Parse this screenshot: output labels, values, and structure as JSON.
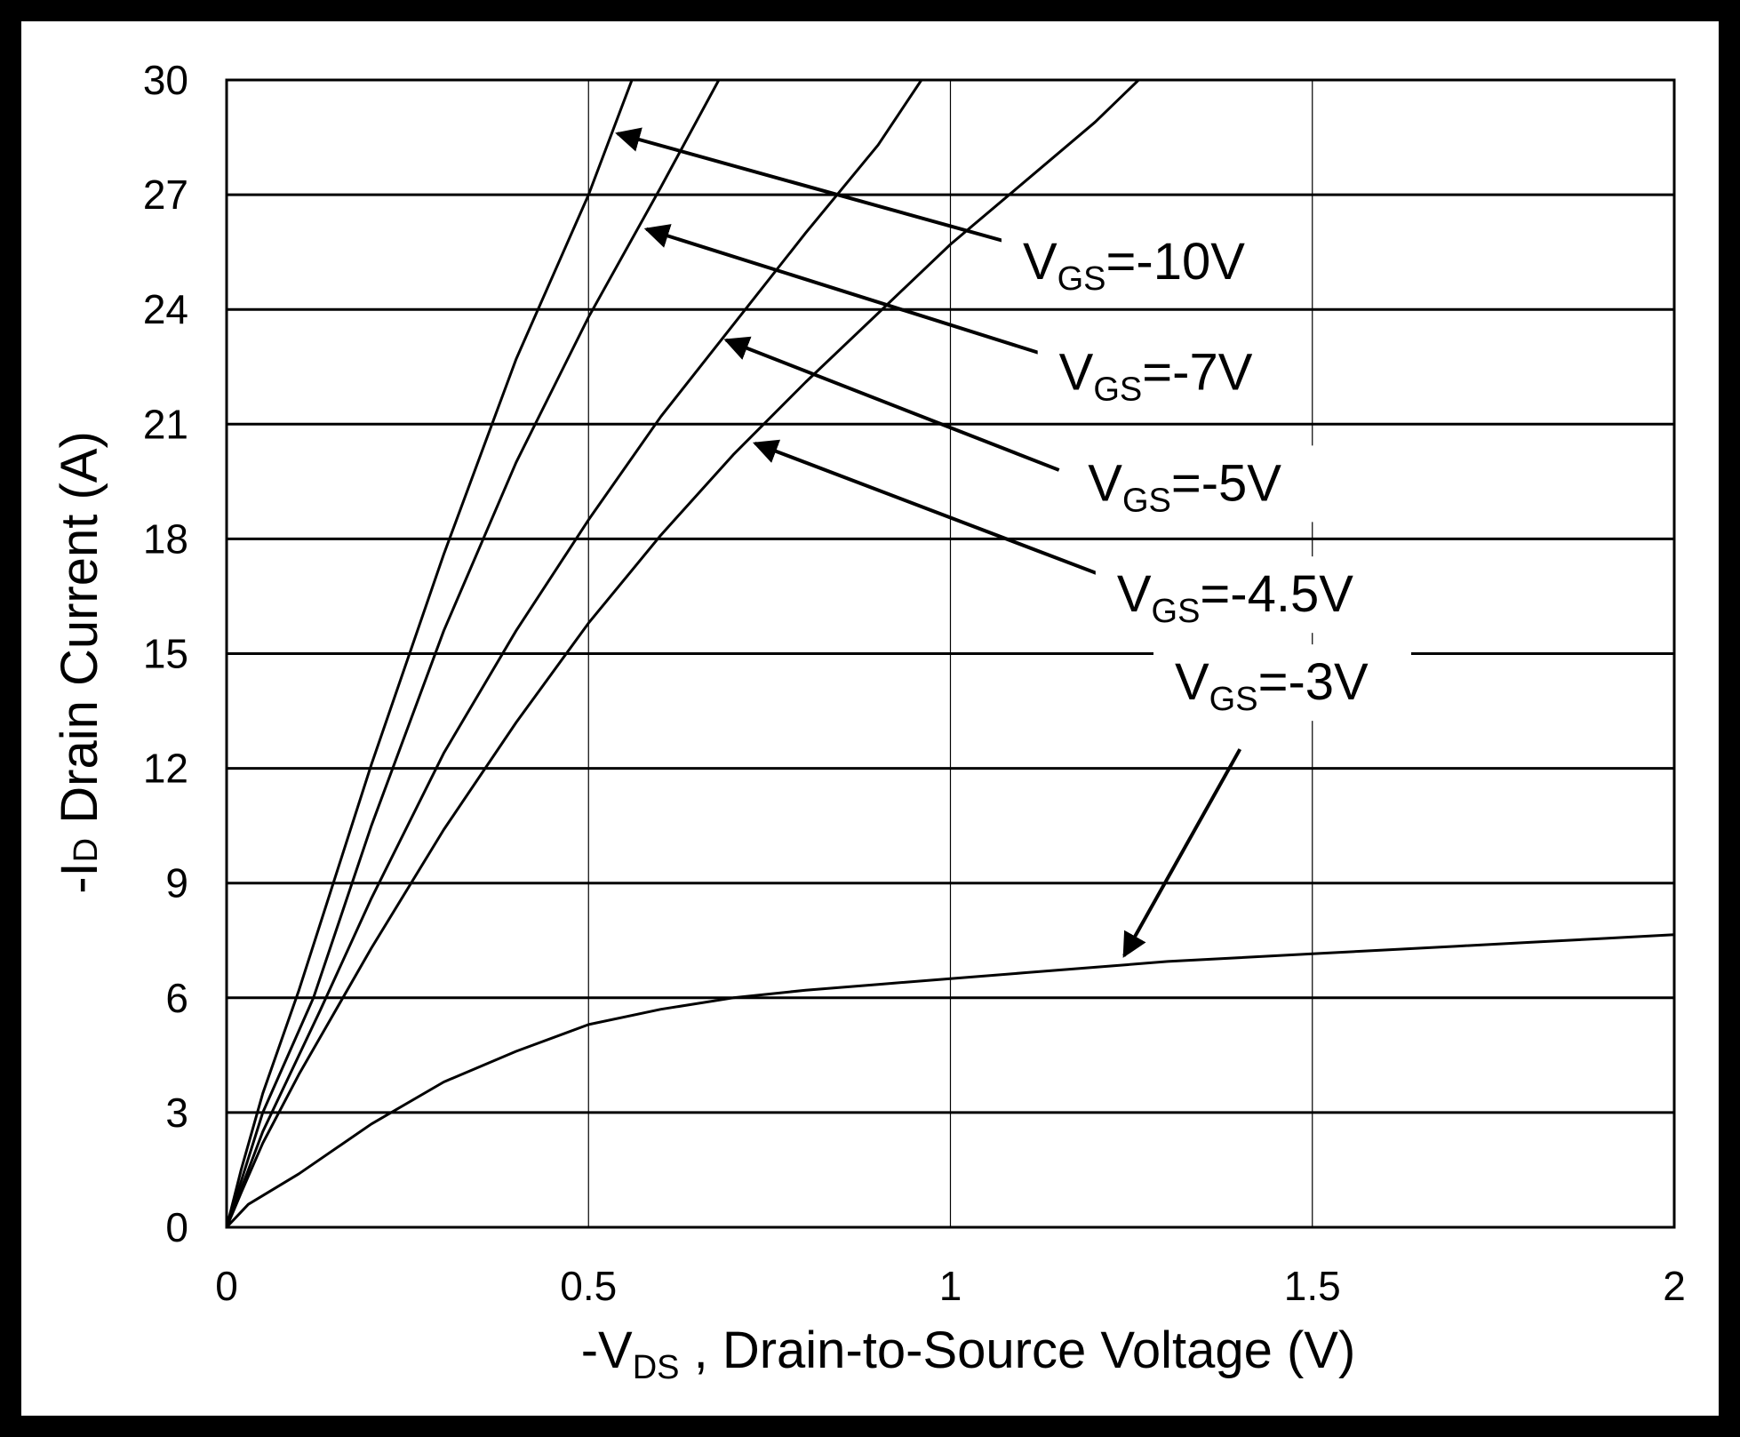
{
  "chart_data": {
    "type": "line",
    "title": "",
    "xlabel": {
      "prefix": "-V",
      "sub": "DS",
      "suffix": " , Drain-to-Source Voltage (V)"
    },
    "ylabel": {
      "prefix": "-I",
      "sub": "D",
      "suffix": " Drain Current (A)"
    },
    "xlim": [
      0,
      2
    ],
    "ylim": [
      0,
      30
    ],
    "xticks": [
      0,
      0.5,
      1,
      1.5,
      2
    ],
    "xtick_labels": [
      "0",
      "0.5",
      "1",
      "1.5",
      "2"
    ],
    "yticks": [
      0,
      3,
      6,
      9,
      12,
      15,
      18,
      21,
      24,
      27,
      30
    ],
    "ytick_labels": [
      "0",
      "3",
      "6",
      "9",
      "12",
      "15",
      "18",
      "21",
      "24",
      "27",
      "30"
    ],
    "grid": "on",
    "series": [
      {
        "name": "VGS=-10V",
        "label": {
          "prefix": "V",
          "sub": "GS",
          "suffix": "=-10V"
        },
        "x": [
          0,
          0.02,
          0.05,
          0.1,
          0.2,
          0.3,
          0.4,
          0.5,
          0.56
        ],
        "y": [
          0,
          1.5,
          3.5,
          6.2,
          12.1,
          17.6,
          22.7,
          27.0,
          30.0
        ]
      },
      {
        "name": "VGS=-7V",
        "label": {
          "prefix": "V",
          "sub": "GS",
          "suffix": "=-7V"
        },
        "x": [
          0,
          0.02,
          0.05,
          0.12,
          0.2,
          0.3,
          0.4,
          0.5,
          0.6,
          0.68
        ],
        "y": [
          0,
          1.2,
          3.0,
          6.0,
          10.5,
          15.6,
          20.0,
          23.8,
          27.2,
          30.0
        ]
      },
      {
        "name": "VGS=-5V",
        "label": {
          "prefix": "V",
          "sub": "GS",
          "suffix": "=-5V"
        },
        "x": [
          0,
          0.02,
          0.05,
          0.13,
          0.2,
          0.3,
          0.4,
          0.5,
          0.6,
          0.7,
          0.8,
          0.9,
          0.96
        ],
        "y": [
          0,
          1.0,
          2.5,
          5.7,
          8.6,
          12.4,
          15.6,
          18.5,
          21.2,
          23.6,
          26.0,
          28.3,
          30.0
        ]
      },
      {
        "name": "VGS=-4.5V",
        "label": {
          "prefix": "V",
          "sub": "GS",
          "suffix": "=-4.5V"
        },
        "x": [
          0,
          0.02,
          0.05,
          0.1,
          0.2,
          0.3,
          0.4,
          0.5,
          0.6,
          0.7,
          0.8,
          0.9,
          1.0,
          1.1,
          1.2,
          1.26
        ],
        "y": [
          0,
          0.9,
          2.2,
          4.0,
          7.3,
          10.4,
          13.2,
          15.8,
          18.1,
          20.2,
          22.1,
          23.9,
          25.7,
          27.3,
          28.9,
          30.0
        ]
      },
      {
        "name": "VGS=-3V",
        "label": {
          "prefix": "V",
          "sub": "GS",
          "suffix": "=-3V"
        },
        "x": [
          0,
          0.03,
          0.1,
          0.2,
          0.3,
          0.4,
          0.5,
          0.6,
          0.7,
          0.8,
          0.9,
          1.0,
          1.1,
          1.2,
          1.3,
          1.4,
          1.5,
          1.6,
          1.7,
          1.8,
          1.9,
          2.0
        ],
        "y": [
          0,
          0.6,
          1.4,
          2.7,
          3.8,
          4.6,
          5.3,
          5.7,
          6.0,
          6.2,
          6.35,
          6.5,
          6.65,
          6.8,
          6.95,
          7.05,
          7.15,
          7.25,
          7.35,
          7.45,
          7.55,
          7.65
        ]
      }
    ],
    "annotations": [
      {
        "series": "VGS=-10V",
        "label_value": [
          1.1,
          24.8
        ],
        "arrow_from": [
          1.11,
          25.6
        ],
        "arrow_to": [
          0.54,
          28.6
        ]
      },
      {
        "series": "VGS=-7V",
        "label_value": [
          1.15,
          21.9
        ],
        "arrow_from": [
          1.15,
          22.7
        ],
        "arrow_to": [
          0.58,
          26.1
        ]
      },
      {
        "series": "VGS=-5V",
        "label_value": [
          1.19,
          19.0
        ],
        "arrow_from": [
          1.15,
          19.8
        ],
        "arrow_to": [
          0.69,
          23.2
        ]
      },
      {
        "series": "VGS=-4.5V",
        "label_value": [
          1.23,
          16.1
        ],
        "arrow_from": [
          1.23,
          16.9
        ],
        "arrow_to": [
          0.73,
          20.5
        ]
      },
      {
        "series": "VGS=-3V",
        "label_value": [
          1.31,
          13.8
        ],
        "arrow_from": [
          1.4,
          12.5
        ],
        "arrow_to": [
          1.24,
          7.1
        ]
      }
    ]
  }
}
